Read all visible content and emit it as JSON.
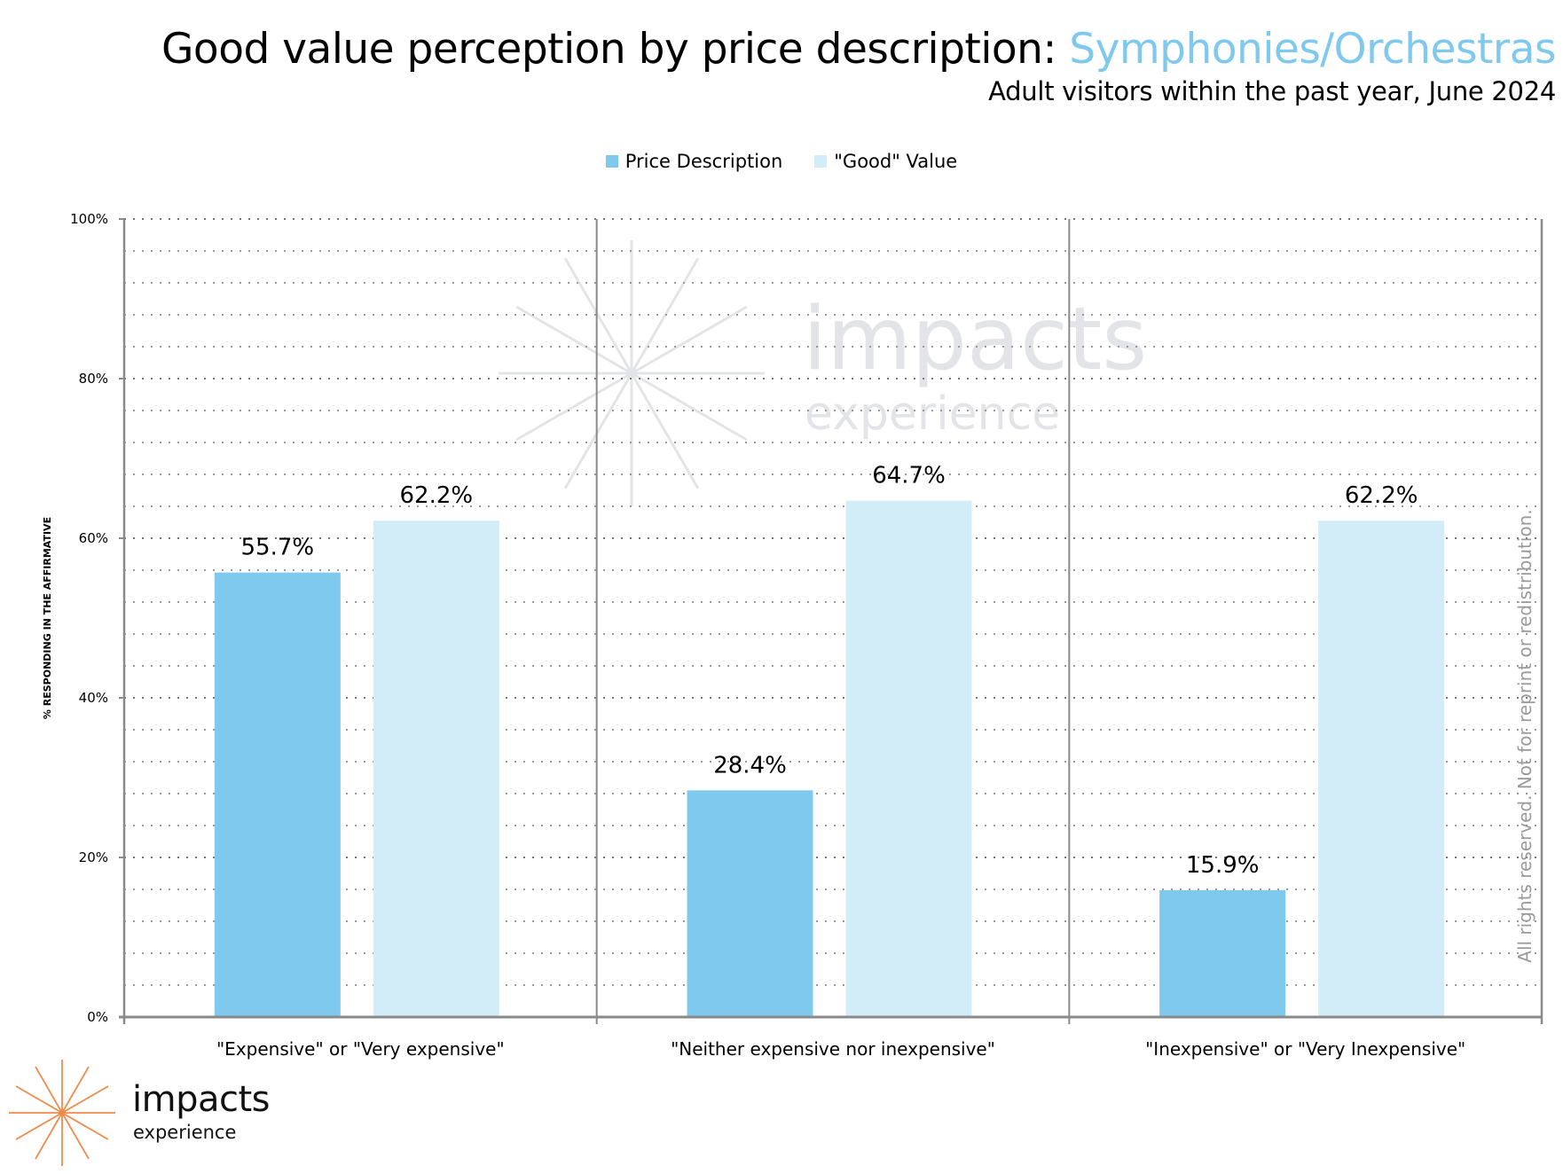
{
  "header": {
    "title_prefix": "Good value perception by price description: ",
    "title_accent": "Symphonies/Orchestras",
    "subtitle": "Adult visitors within the past year, June 2024"
  },
  "colors": {
    "accent": "#7fc8ee",
    "series_price": "#7fc8ee",
    "series_good": "#d3edf8",
    "axis": "#8a8a8a",
    "grid": "#9a9a9a",
    "watermark": "#e3e4e8",
    "logo_orange": "#f08a4b"
  },
  "legend": {
    "items": [
      {
        "label": "Price Description",
        "color": "#7fc8ee"
      },
      {
        "label": "\"Good\" Value",
        "color": "#d3edf8"
      }
    ]
  },
  "chart_data": {
    "type": "bar",
    "title": "Good value perception by price description: Symphonies/Orchestras",
    "subtitle": "Adult visitors within the past year, June 2024",
    "xlabel": "",
    "ylabel": "% RESPONDING IN THE AFFIRMATIVE",
    "ylim": [
      0,
      100
    ],
    "yticks": [
      0,
      20,
      40,
      60,
      80,
      100
    ],
    "ytick_labels": [
      "0%",
      "20%",
      "40%",
      "60%",
      "80%",
      "100%"
    ],
    "minor_grid_step": 4,
    "grid": true,
    "legend_position": "top-center",
    "categories": [
      "\"Expensive\" or \"Very expensive\"",
      "\"Neither expensive nor inexpensive\"",
      "\"Inexpensive\" or \"Very Inexpensive\""
    ],
    "series": [
      {
        "name": "Price Description",
        "values": [
          55.7,
          28.4,
          15.9
        ],
        "labels": [
          "55.7%",
          "28.4%",
          "15.9%"
        ]
      },
      {
        "name": "\"Good\" Value",
        "values": [
          62.2,
          64.7,
          62.2
        ],
        "labels": [
          "62.2%",
          "64.7%",
          "62.2%"
        ]
      }
    ]
  },
  "watermark": {
    "line1": "impacts",
    "line2": "experience"
  },
  "rights_notice": "All rights reserved. Not for reprint or redistribution.",
  "logo": {
    "line1": "impacts",
    "line2": "experience"
  }
}
